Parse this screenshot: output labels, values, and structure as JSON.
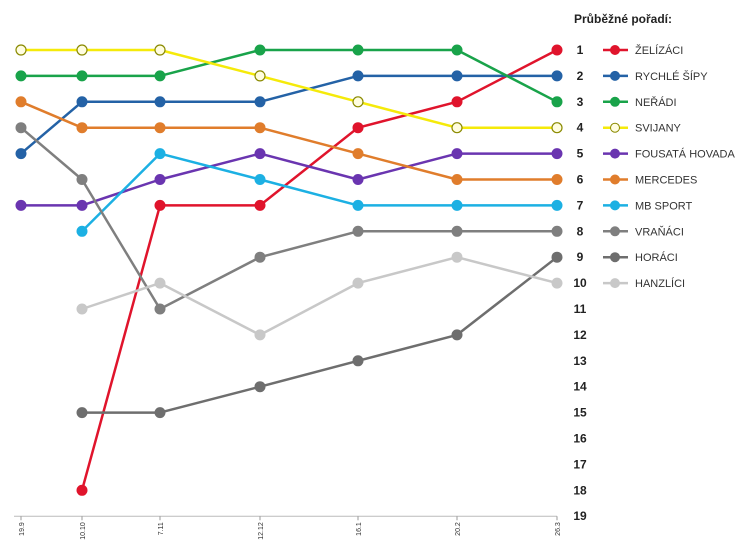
{
  "chart_data": {
    "type": "line",
    "title": "Průběžné pořadí:",
    "x": [
      "19.9",
      "10.10",
      "7.11",
      "12.12",
      "16.1",
      "20.2",
      "26.3"
    ],
    "ylim": [
      1,
      19
    ],
    "y_ticks": [
      "1",
      "2",
      "3",
      "4",
      "5",
      "6",
      "7",
      "8",
      "9",
      "10",
      "11",
      "12",
      "13",
      "14",
      "15",
      "16",
      "17",
      "18",
      "19"
    ],
    "y_inverted": true,
    "grid": false,
    "legend_position": "right",
    "series": [
      {
        "name": "ŽELÍZÁCI",
        "color": "#e0142c",
        "values": [
          null,
          18,
          7,
          7,
          4,
          3,
          1
        ]
      },
      {
        "name": "RYCHLÉ ŠÍPY",
        "color": "#2462a6",
        "values": [
          5,
          3,
          3,
          3,
          2,
          2,
          2
        ]
      },
      {
        "name": "NEŘÁDI",
        "color": "#19a34a",
        "values": [
          2,
          2,
          2,
          1,
          1,
          1,
          3
        ]
      },
      {
        "name": "SVIJANY",
        "color": "#f5ea0a",
        "values": [
          1,
          1,
          1,
          2,
          3,
          4,
          4
        ],
        "hollow": true
      },
      {
        "name": "FOUSATÁ HOVADA",
        "color": "#6a35b0",
        "values": [
          7,
          7,
          6,
          5,
          6,
          5,
          5
        ]
      },
      {
        "name": "MERCEDES",
        "color": "#e07d2c",
        "values": [
          3,
          4,
          4,
          4,
          5,
          6,
          6
        ]
      },
      {
        "name": "MB SPORT",
        "color": "#1cb0e3",
        "values": [
          null,
          8,
          5,
          6,
          7,
          7,
          7
        ]
      },
      {
        "name": "VRAŇÁCI",
        "color": "#7f7f7f",
        "values": [
          4,
          6,
          11,
          9,
          8,
          8,
          8
        ]
      },
      {
        "name": "HORÁCI",
        "color": "#6e6e6e",
        "values": [
          null,
          15,
          15,
          14,
          13,
          12,
          9
        ]
      },
      {
        "name": "HANZLÍCI",
        "color": "#c8c8c8",
        "values": [
          null,
          11,
          10,
          12,
          10,
          9,
          10
        ]
      }
    ]
  }
}
